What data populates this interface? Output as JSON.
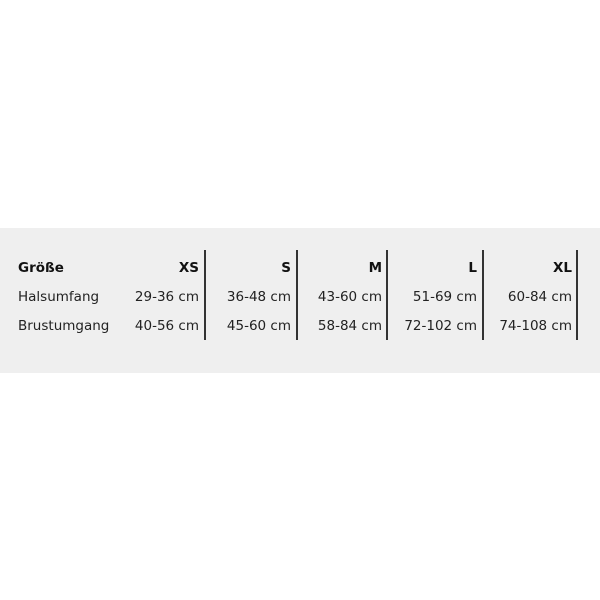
{
  "table": {
    "header": [
      "Größe",
      "XS",
      "S",
      "M",
      "L",
      "XL"
    ],
    "rows": [
      [
        "Halsumfang",
        "29-36 cm",
        "36-48 cm",
        "43-60 cm",
        "51-69 cm",
        "60-84 cm"
      ],
      [
        "Brustumgang",
        "40-56 cm",
        "45-60 cm",
        "58-84 cm",
        "72-102 cm",
        "74-108 cm"
      ]
    ]
  }
}
